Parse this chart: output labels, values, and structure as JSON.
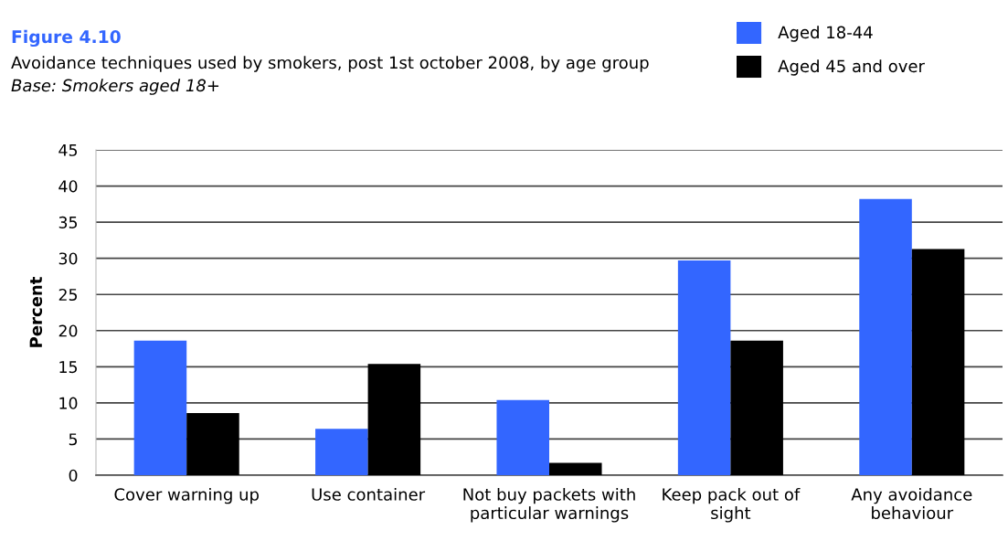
{
  "chart_data": {
    "type": "bar",
    "title": "Figure 4.10",
    "subtitle": "Avoidance techniques used by smokers, post 1st october 2008, by age group",
    "annotations": [
      "Base: Smokers aged 18+"
    ],
    "ylabel": "Percent",
    "categories": [
      "Cover warning up",
      "Use container",
      "Not buy packets with\nparticular warnings",
      "Keep pack out of\nsight",
      "Any avoidance\nbehaviour"
    ],
    "series": [
      {
        "name": "Aged 18-44",
        "color": "#3366ff",
        "values": [
          18.6,
          6.4,
          10.4,
          29.7,
          38.2
        ]
      },
      {
        "name": "Aged 45 and over",
        "color": "#000000",
        "values": [
          8.6,
          15.4,
          1.7,
          18.6,
          31.3
        ]
      }
    ],
    "ylim": [
      0,
      45
    ],
    "yticks": [
      0,
      5,
      10,
      15,
      20,
      25,
      30,
      35,
      40,
      45
    ],
    "grid": "y",
    "legend": "top right"
  }
}
